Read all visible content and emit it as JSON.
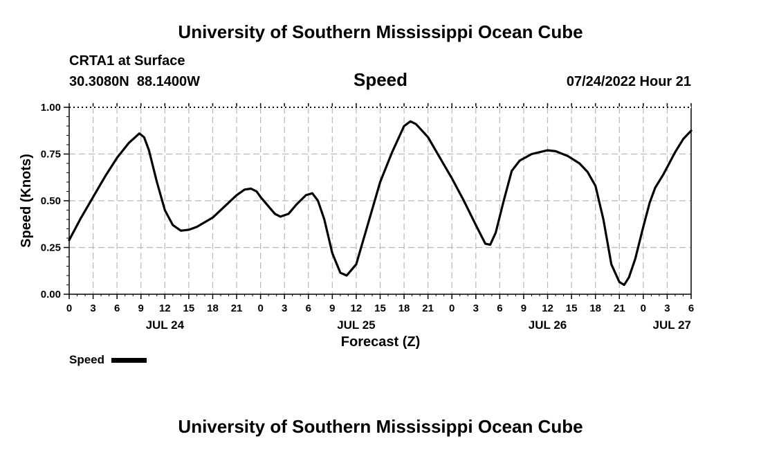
{
  "header": {
    "title": "University of Southern Mississippi Ocean Cube",
    "station": "CRTA1 at Surface",
    "coords": "30.3080N  88.1400W",
    "variable": "Speed",
    "datetime": "07/24/2022 Hour 21"
  },
  "footer": {
    "title": "University of Southern Mississippi Ocean Cube"
  },
  "legend": {
    "label": "Speed",
    "color": "#000000"
  },
  "chart_data": {
    "type": "line",
    "title": "Speed",
    "xlabel": "Forecast (Z)",
    "ylabel": "Speed (Knots)",
    "ylim": [
      0,
      1
    ],
    "xlim": [
      0,
      78
    ],
    "grid": true,
    "legend_position": "bottom-left",
    "y_ticks": [
      {
        "value": 0,
        "label": "0.00"
      },
      {
        "value": 0.25,
        "label": "0.25"
      },
      {
        "value": 0.5,
        "label": "0.50"
      },
      {
        "value": 0.75,
        "label": "0.75"
      },
      {
        "value": 1,
        "label": "1.00"
      }
    ],
    "x_ticks": [
      {
        "value": 0,
        "label": "0"
      },
      {
        "value": 3,
        "label": "3"
      },
      {
        "value": 6,
        "label": "6"
      },
      {
        "value": 9,
        "label": "9"
      },
      {
        "value": 12,
        "label": "12"
      },
      {
        "value": 15,
        "label": "15"
      },
      {
        "value": 18,
        "label": "18"
      },
      {
        "value": 21,
        "label": "21"
      },
      {
        "value": 24,
        "label": "0"
      },
      {
        "value": 27,
        "label": "3"
      },
      {
        "value": 30,
        "label": "6"
      },
      {
        "value": 33,
        "label": "9"
      },
      {
        "value": 36,
        "label": "12"
      },
      {
        "value": 39,
        "label": "15"
      },
      {
        "value": 42,
        "label": "18"
      },
      {
        "value": 45,
        "label": "21"
      },
      {
        "value": 48,
        "label": "0"
      },
      {
        "value": 51,
        "label": "3"
      },
      {
        "value": 54,
        "label": "6"
      },
      {
        "value": 57,
        "label": "9"
      },
      {
        "value": 60,
        "label": "12"
      },
      {
        "value": 63,
        "label": "15"
      },
      {
        "value": 66,
        "label": "18"
      },
      {
        "value": 69,
        "label": "21"
      },
      {
        "value": 72,
        "label": "0"
      },
      {
        "value": 75,
        "label": "3"
      },
      {
        "value": 78,
        "label": "6"
      }
    ],
    "date_labels": [
      {
        "value": 12,
        "label": "JUL 24"
      },
      {
        "value": 36,
        "label": "JUL 25"
      },
      {
        "value": 60,
        "label": "JUL 26"
      },
      {
        "value": 78,
        "label": "JUL 27"
      }
    ],
    "series": [
      {
        "name": "Speed",
        "color": "#000000",
        "x": [
          0,
          1.5,
          3,
          4.5,
          6,
          7.5,
          8.8,
          9.4,
          10,
          11,
          12,
          13,
          14,
          15,
          16,
          18,
          19.5,
          21,
          22,
          22.8,
          23.5,
          24,
          25,
          25.8,
          26.5,
          27.5,
          28.5,
          29.7,
          30.5,
          31.2,
          32,
          33,
          34,
          34.8,
          36,
          37.5,
          39,
          40.5,
          42,
          42.8,
          43.5,
          45,
          46.5,
          48,
          49.5,
          51,
          52.2,
          52.8,
          53.5,
          54.5,
          55.5,
          56.5,
          58,
          60,
          61,
          62.5,
          64,
          65,
          66,
          67,
          68,
          69,
          69.6,
          70.2,
          71,
          72,
          72.8,
          73.5,
          74.5,
          76,
          77,
          78
        ],
        "y": [
          0.29,
          0.41,
          0.52,
          0.63,
          0.73,
          0.81,
          0.86,
          0.84,
          0.77,
          0.6,
          0.45,
          0.37,
          0.34,
          0.345,
          0.36,
          0.41,
          0.47,
          0.53,
          0.56,
          0.565,
          0.55,
          0.52,
          0.47,
          0.43,
          0.415,
          0.43,
          0.48,
          0.53,
          0.54,
          0.5,
          0.4,
          0.22,
          0.115,
          0.1,
          0.16,
          0.38,
          0.6,
          0.76,
          0.9,
          0.925,
          0.91,
          0.84,
          0.73,
          0.62,
          0.5,
          0.37,
          0.27,
          0.265,
          0.33,
          0.5,
          0.66,
          0.715,
          0.75,
          0.77,
          0.765,
          0.74,
          0.7,
          0.655,
          0.58,
          0.4,
          0.16,
          0.065,
          0.05,
          0.09,
          0.19,
          0.36,
          0.49,
          0.57,
          0.64,
          0.76,
          0.83,
          0.875
        ]
      }
    ]
  }
}
